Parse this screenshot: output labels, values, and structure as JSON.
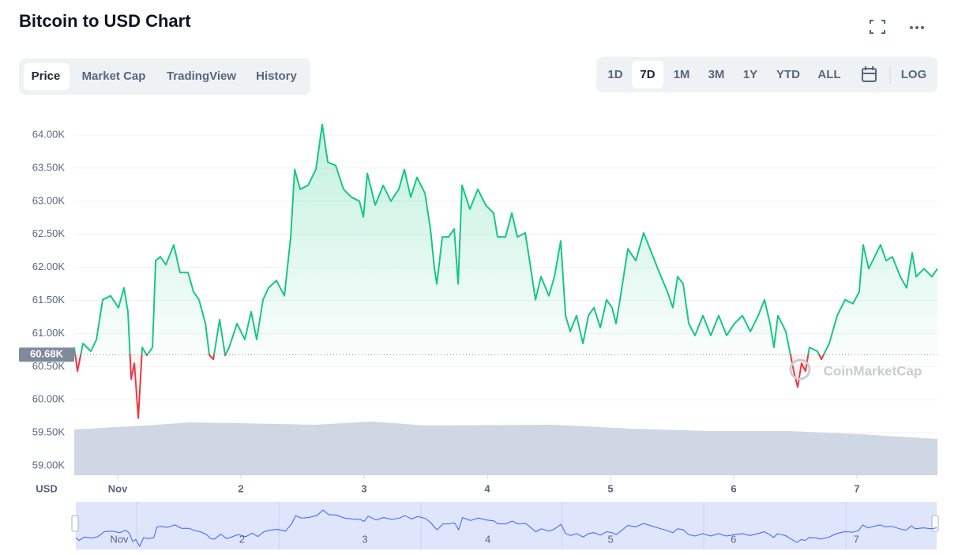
{
  "chart_data": {
    "type": "line",
    "title": "Bitcoin to USD Chart",
    "tabs": [
      "Price",
      "Market Cap",
      "TradingView",
      "History"
    ],
    "ranges": [
      "1D",
      "7D",
      "1M",
      "3M",
      "1Y",
      "YTD",
      "ALL"
    ],
    "scale_button": "LOG",
    "ylabel": "USD",
    "watermark": "CoinMarketCap",
    "up_color": "#16c784",
    "down_color": "#ea3943",
    "navigator_color": "#3861fb",
    "reference_line": {
      "value": 60680,
      "label": "60.68K"
    },
    "grid": true,
    "xlim": [
      0.647,
      7.654
    ],
    "xticks": [
      {
        "value": 1,
        "label": "Nov"
      },
      2,
      3,
      4,
      5,
      6,
      7
    ],
    "ylim": [
      58857,
      64406
    ],
    "yticks": [
      {
        "value": 59000,
        "label": "59.00K"
      },
      {
        "value": 59500,
        "label": "59.50K"
      },
      {
        "value": 60000,
        "label": "60.00K"
      },
      {
        "value": 60500,
        "label": "60.50K"
      },
      {
        "value": 61000,
        "label": "61.00K"
      },
      {
        "value": 61500,
        "label": "61.50K"
      },
      {
        "value": 62000,
        "label": "62.00K"
      },
      {
        "value": 62500,
        "label": "62.50K"
      },
      {
        "value": 63000,
        "label": "63.00K"
      },
      {
        "value": 63500,
        "label": "63.50K"
      },
      {
        "value": 64000,
        "label": "64.00K"
      }
    ],
    "x": [
      0.647,
      0.673,
      0.718,
      0.782,
      0.827,
      0.878,
      0.942,
      1.006,
      1.051,
      1.083,
      1.109,
      1.135,
      1.167,
      1.199,
      1.237,
      1.282,
      1.308,
      1.346,
      1.391,
      1.455,
      1.506,
      1.571,
      1.615,
      1.66,
      1.712,
      1.744,
      1.776,
      1.827,
      1.872,
      1.904,
      1.968,
      2.032,
      2.083,
      2.128,
      2.179,
      2.224,
      2.288,
      2.353,
      2.404,
      2.436,
      2.481,
      2.545,
      2.609,
      2.66,
      2.705,
      2.769,
      2.833,
      2.897,
      2.962,
      2.994,
      3.026,
      3.09,
      3.154,
      3.218,
      3.282,
      3.327,
      3.378,
      3.429,
      3.494,
      3.538,
      3.571,
      3.59,
      3.635,
      3.686,
      3.731,
      3.763,
      3.795,
      3.859,
      3.923,
      3.987,
      4.051,
      4.083,
      4.147,
      4.199,
      4.244,
      4.308,
      4.353,
      4.391,
      4.436,
      4.5,
      4.545,
      4.596,
      4.635,
      4.673,
      4.724,
      4.776,
      4.821,
      4.865,
      4.917,
      4.968,
      5.013,
      5.045,
      5.077,
      5.141,
      5.205,
      5.269,
      5.333,
      5.397,
      5.462,
      5.506,
      5.545,
      5.59,
      5.635,
      5.686,
      5.75,
      5.814,
      5.878,
      5.942,
      6.006,
      6.071,
      6.135,
      6.199,
      6.25,
      6.295,
      6.327,
      6.359,
      6.391,
      6.423,
      6.455,
      6.487,
      6.519,
      6.551,
      6.583,
      6.615,
      6.679,
      6.712,
      6.776,
      6.84,
      6.904,
      6.968,
      7.019,
      7.051,
      7.096,
      7.16,
      7.192,
      7.237,
      7.288,
      7.353,
      7.404,
      7.449,
      7.481,
      7.545,
      7.609,
      7.654
    ],
    "values": [
      60790,
      60430,
      60850,
      60730,
      60910,
      61510,
      61570,
      61390,
      61690,
      61330,
      60310,
      60550,
      59720,
      60790,
      60670,
      60790,
      62100,
      62160,
      62040,
      62340,
      61920,
      61920,
      61630,
      61510,
      61150,
      60670,
      60610,
      61210,
      60670,
      60790,
      61150,
      60910,
      61330,
      60910,
      61510,
      61690,
      61800,
      61570,
      62460,
      63480,
      63180,
      63240,
      63480,
      64160,
      63590,
      63540,
      63180,
      63060,
      63000,
      62760,
      63420,
      62940,
      63240,
      63000,
      63180,
      63480,
      63060,
      63360,
      63120,
      62580,
      61980,
      61750,
      62460,
      62460,
      62580,
      61750,
      63240,
      62880,
      63180,
      62940,
      62820,
      62460,
      62460,
      62820,
      62460,
      62520,
      61980,
      61510,
      61860,
      61570,
      61860,
      62400,
      61270,
      61030,
      61270,
      60850,
      61270,
      61390,
      61090,
      61510,
      61390,
      61150,
      61510,
      62280,
      62100,
      62520,
      62220,
      61920,
      61630,
      61390,
      61860,
      61750,
      61150,
      60970,
      61270,
      60970,
      61270,
      60970,
      61150,
      61270,
      61030,
      61270,
      61510,
      61150,
      60790,
      61270,
      61150,
      61030,
      60730,
      60430,
      60190,
      60550,
      60430,
      60790,
      60730,
      60610,
      60850,
      61270,
      61510,
      61450,
      61630,
      62340,
      61980,
      62220,
      62340,
      62100,
      62160,
      61860,
      61690,
      62220,
      61860,
      61980,
      61860,
      61980
    ]
  }
}
